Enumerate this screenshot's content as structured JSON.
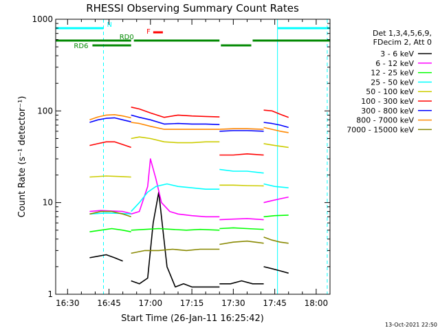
{
  "chart_data": {
    "type": "line",
    "title": "RHESSI Observing Summary Count Rates",
    "xlabel": "Start Time (26-Jan-11 16:25:42)",
    "ylabel": "Count Rate (s⁻¹ detector⁻¹)",
    "y_scale": "log",
    "ylim": [
      1,
      1000
    ],
    "xlim": [
      "16:25:42",
      "18:05:00"
    ],
    "x_ticks": [
      "16:30",
      "16:45",
      "17:00",
      "17:15",
      "17:30",
      "17:45",
      "18:00"
    ],
    "y_ticks": [
      "1",
      "10",
      "100",
      "1000"
    ],
    "legend_position": "right",
    "legend_header": [
      "Det 1,3,4,5,6,9,",
      "FDecim 2, Att 0"
    ],
    "footer_date": "13-Oct-2021 22:50",
    "grid": false,
    "series": [
      {
        "name": "3 - 6 keV",
        "color": "#000000",
        "segments": [
          {
            "x": [
              "16:38",
              "16:41",
              "16:44",
              "16:47",
              "16:50"
            ],
            "y": [
              2.5,
              2.6,
              2.7,
              2.5,
              2.3
            ]
          },
          {
            "x": [
              "16:53",
              "16:56",
              "16:59",
              "17:01",
              "17:03",
              "17:06",
              "17:09",
              "17:12",
              "17:15",
              "17:20",
              "17:25"
            ],
            "y": [
              1.4,
              1.3,
              1.5,
              6,
              13,
              2,
              1.2,
              1.3,
              1.2,
              1.2,
              1.2
            ]
          },
          {
            "x": [
              "17:25",
              "17:29",
              "17:33",
              "17:37",
              "17:41"
            ],
            "y": [
              1.3,
              1.3,
              1.4,
              1.3,
              1.3
            ]
          },
          {
            "x": [
              "17:41",
              "17:44",
              "17:47",
              "17:50"
            ],
            "y": [
              2,
              1.9,
              1.8,
              1.7
            ]
          }
        ]
      },
      {
        "name": "6 - 12 keV",
        "color": "#ff00ff",
        "segments": [
          {
            "x": [
              "16:38",
              "16:42",
              "16:46",
              "16:50",
              "16:53"
            ],
            "y": [
              8,
              8.2,
              8.1,
              8,
              7.6
            ]
          },
          {
            "x": [
              "16:53",
              "16:56",
              "16:59",
              "17:00",
              "17:02",
              "17:04",
              "17:07",
              "17:10",
              "17:15",
              "17:20",
              "17:25"
            ],
            "y": [
              7.5,
              8,
              15,
              30,
              18,
              10,
              8,
              7.5,
              7.2,
              7,
              7
            ]
          },
          {
            "x": [
              "17:25",
              "17:30",
              "17:35",
              "17:41"
            ],
            "y": [
              6.5,
              6.6,
              6.7,
              6.5
            ]
          },
          {
            "x": [
              "17:41",
              "17:44",
              "17:47",
              "17:50"
            ],
            "y": [
              10,
              10.5,
              11,
              11.5
            ]
          }
        ]
      },
      {
        "name": "12 - 25 keV",
        "color": "#00ff00",
        "segments": [
          {
            "x": [
              "16:38",
              "16:42",
              "16:46",
              "16:50",
              "16:53"
            ],
            "y": [
              4.8,
              5,
              5.2,
              5,
              4.8
            ]
          },
          {
            "x": [
              "16:53",
              "16:58",
              "17:03",
              "17:08",
              "17:13",
              "17:18",
              "17:25"
            ],
            "y": [
              5,
              5.1,
              5.2,
              5.1,
              5,
              5.1,
              5
            ]
          },
          {
            "x": [
              "17:25",
              "17:30",
              "17:35",
              "17:41"
            ],
            "y": [
              5.2,
              5.3,
              5.2,
              5.1
            ]
          },
          {
            "x": [
              "17:41",
              "17:45",
              "17:50"
            ],
            "y": [
              7,
              7.2,
              7.3
            ]
          }
        ]
      },
      {
        "name": "25 - 50 keV",
        "color": "#00ffff",
        "segments": [
          {
            "x": [
              "16:38",
              "16:44",
              "16:50",
              "16:53"
            ],
            "y": [
              7.5,
              7.7,
              7.6,
              7.5
            ]
          },
          {
            "x": [
              "16:53",
              "16:56",
              "16:59",
              "17:02",
              "17:06",
              "17:10",
              "17:15",
              "17:20",
              "17:25"
            ],
            "y": [
              8,
              10,
              13,
              15,
              16,
              15,
              14.5,
              14,
              14
            ]
          },
          {
            "x": [
              "17:25",
              "17:30",
              "17:35",
              "17:41"
            ],
            "y": [
              23,
              22,
              22,
              21
            ]
          },
          {
            "x": [
              "17:41",
              "17:45",
              "17:50"
            ],
            "y": [
              16,
              15,
              14.5
            ]
          }
        ]
      },
      {
        "name": "50 - 100 keV",
        "color": "#cccc00",
        "segments": [
          {
            "x": [
              "16:38",
              "16:44",
              "16:50",
              "16:53"
            ],
            "y": [
              19,
              19.5,
              19.2,
              19
            ]
          },
          {
            "x": [
              "16:53",
              "16:56",
              "17:00",
              "17:05",
              "17:10",
              "17:15",
              "17:20",
              "17:25"
            ],
            "y": [
              50,
              52,
              50,
              46,
              45,
              45,
              46,
              46
            ]
          },
          {
            "x": [
              "17:25",
              "17:30",
              "17:35",
              "17:41"
            ],
            "y": [
              15.5,
              15.5,
              15.3,
              15.2
            ]
          },
          {
            "x": [
              "17:41",
              "17:45",
              "17:50"
            ],
            "y": [
              44,
              42,
              40
            ]
          }
        ]
      },
      {
        "name": "100 - 300 keV",
        "color": "#ff0000",
        "segments": [
          {
            "x": [
              "16:38",
              "16:41",
              "16:44",
              "16:47",
              "16:50",
              "16:53"
            ],
            "y": [
              42,
              44,
              46,
              46,
              43,
              40
            ]
          },
          {
            "x": [
              "16:53",
              "16:56",
              "17:00",
              "17:05",
              "17:10",
              "17:15",
              "17:20",
              "17:25"
            ],
            "y": [
              110,
              105,
              95,
              85,
              90,
              88,
              87,
              86
            ]
          },
          {
            "x": [
              "17:25",
              "17:30",
              "17:35",
              "17:41"
            ],
            "y": [
              33,
              33,
              34,
              33
            ]
          },
          {
            "x": [
              "17:41",
              "17:44",
              "17:47",
              "17:50"
            ],
            "y": [
              102,
              100,
              92,
              85
            ]
          }
        ]
      },
      {
        "name": "300 - 800 keV",
        "color": "#0000ff",
        "segments": [
          {
            "x": [
              "16:38",
              "16:41",
              "16:44",
              "16:47",
              "16:50",
              "16:53"
            ],
            "y": [
              75,
              80,
              83,
              84,
              80,
              76
            ]
          },
          {
            "x": [
              "16:53",
              "16:56",
              "17:00",
              "17:05",
              "17:10",
              "17:15",
              "17:20",
              "17:25"
            ],
            "y": [
              90,
              85,
              80,
              72,
              73,
              72,
              72,
              71
            ]
          },
          {
            "x": [
              "17:25",
              "17:30",
              "17:35",
              "17:41"
            ],
            "y": [
              60,
              61,
              61,
              60
            ]
          },
          {
            "x": [
              "17:41",
              "17:44",
              "17:47",
              "17:50"
            ],
            "y": [
              75,
              73,
              70,
              66
            ]
          }
        ]
      },
      {
        "name": "800 - 7000 keV",
        "color": "#ff8800",
        "segments": [
          {
            "x": [
              "16:38",
              "16:41",
              "16:44",
              "16:47",
              "16:50",
              "16:53"
            ],
            "y": [
              80,
              86,
              90,
              91,
              88,
              84
            ]
          },
          {
            "x": [
              "16:53",
              "16:56",
              "17:00",
              "17:05",
              "17:10",
              "17:15",
              "17:20",
              "17:25"
            ],
            "y": [
              75,
              73,
              68,
              63,
              63,
              63,
              63,
              63
            ]
          },
          {
            "x": [
              "17:25",
              "17:30",
              "17:35",
              "17:41"
            ],
            "y": [
              63,
              64,
              64,
              63
            ]
          },
          {
            "x": [
              "17:41",
              "17:44",
              "17:47",
              "17:50"
            ],
            "y": [
              66,
              63,
              60,
              58
            ]
          }
        ]
      },
      {
        "name": "7000 - 15000 keV",
        "color": "#888800",
        "segments": [
          {
            "x": [
              "16:38",
              "16:42",
              "16:46",
              "16:50",
              "16:53"
            ],
            "y": [
              7.5,
              8,
              8,
              7.5,
              7
            ]
          },
          {
            "x": [
              "16:53",
              "16:58",
              "17:03",
              "17:08",
              "17:13",
              "17:18",
              "17:25"
            ],
            "y": [
              2.8,
              3,
              3,
              3.1,
              3,
              3.1,
              3.1
            ]
          },
          {
            "x": [
              "17:25",
              "17:30",
              "17:35",
              "17:41"
            ],
            "y": [
              3.5,
              3.7,
              3.8,
              3.6
            ]
          },
          {
            "x": [
              "17:41",
              "17:44",
              "17:47",
              "17:50"
            ],
            "y": [
              4.2,
              3.9,
              3.7,
              3.6
            ]
          }
        ]
      }
    ],
    "annotations": [
      {
        "text": "N",
        "color": "#00ffff",
        "bars": [
          [
            "16:25:42",
            "16:43:00"
          ],
          [
            "17:46:00",
            "18:05:00"
          ]
        ],
        "level": 1
      },
      {
        "text": "RD0",
        "color": "#008800",
        "bars": [
          [
            "16:25:42",
            "16:53:00"
          ]
        ],
        "level": 2
      },
      {
        "text": "RD6",
        "color": "#008800",
        "bars": [
          [
            "16:39:00",
            "16:53:00"
          ]
        ],
        "level": 3
      },
      {
        "text": "F",
        "color": "#ff0000",
        "bars": [
          [
            "17:01:00",
            "17:04:30"
          ]
        ],
        "level": 0
      },
      {
        "text": "",
        "color": "#008800",
        "bars": [
          [
            "16:54:00",
            "17:25:00"
          ],
          [
            "17:37:00",
            "18:05:00"
          ]
        ],
        "level": 2
      },
      {
        "text": "",
        "color": "#008800",
        "bars": [
          [
            "17:25:30",
            "17:36:30"
          ]
        ],
        "level": 3
      }
    ],
    "vertical_markers": {
      "solid_color": "#00ffff",
      "dashed_color": "#00ffff",
      "solid": [
        "16:25:42",
        "17:46:00"
      ],
      "dashed": [
        "16:43:00",
        "18:04:00"
      ]
    }
  }
}
